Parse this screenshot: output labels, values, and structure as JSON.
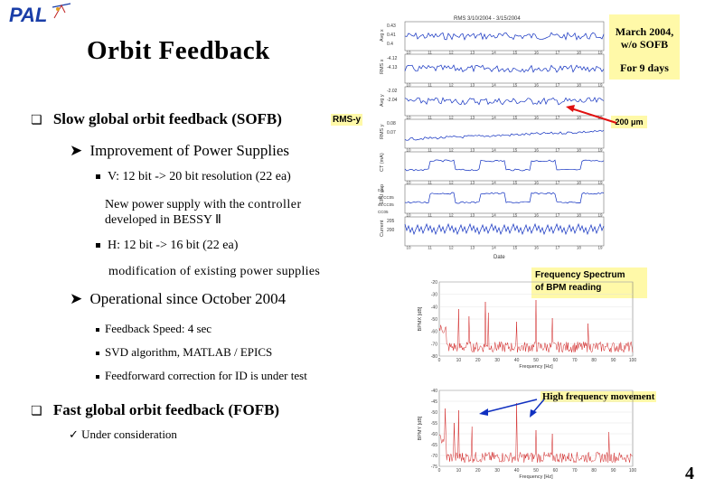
{
  "logo_text": "PAL",
  "title": "Orbit Feedback",
  "sofb": {
    "heading": "Slow global orbit feedback (SOFB)",
    "improvement": "Improvement of Power Supplies",
    "v_item": "V: 12 bit -> 20 bit resolution (22 ea)",
    "v_note_1": "New power supply with the",
    "v_note_controller": "controller",
    "v_note_2": "developed in BESSY Ⅱ",
    "h_item": "H: 12 bit -> 16 bit (22 ea)",
    "h_note": "modification of existing power supplies",
    "operational": "Operational since October 2004",
    "details": [
      "Feedback Speed:  4 sec",
      "SVD algorithm, MATLAB / EPICS",
      "Feedforward correction for ID is under test"
    ]
  },
  "fofb": {
    "heading": "Fast global orbit feedback (FOFB)",
    "note": "Under consideration"
  },
  "callouts": {
    "march": "March 2004, w/o SOFB",
    "days": "For 9 days",
    "rms_label": "RMS-y",
    "um_label": "200 μm",
    "freq_spectrum_1": "Frequency Spectrum",
    "freq_spectrum_2": "of BPM  reading",
    "high_freq": "High frequency movement"
  },
  "rms_chart": {
    "header": "RMS   3/10/2004  -  3/15/2004",
    "xlabel": "Date",
    "x_ticks": [
      "10",
      "11",
      "12",
      "13",
      "14",
      "15",
      "16",
      "17",
      "18",
      "19"
    ],
    "panel_labels": [
      "Avg x",
      "RMS x",
      "Avg y",
      "RMS y",
      "CT (mA)",
      "EPU gap",
      "Current"
    ],
    "panel_ticks": [
      [
        "0.43",
        "0.41",
        "0.4"
      ],
      [
        "-4.12",
        "-4.13"
      ],
      [
        "-2.02",
        "-2.04"
      ],
      [
        "0.08",
        "0.07"
      ],
      [
        "",
        ""
      ],
      [
        "",
        ""
      ],
      [
        "205",
        "200"
      ]
    ],
    "extra_ticks": [
      "0.1",
      "46.CC05",
      "45.CC05",
      "CC05"
    ]
  },
  "spectrum1": {
    "ylabel": "BPMX [dB]",
    "xlabel": "Frequency [Hz]",
    "y_ticks": [
      "-20",
      "-30",
      "-40",
      "-50",
      "-60",
      "-70",
      "-80"
    ],
    "x_ticks": [
      "0",
      "10",
      "20",
      "30",
      "40",
      "50",
      "60",
      "70",
      "80",
      "90",
      "100"
    ]
  },
  "spectrum2": {
    "ylabel": "BPMY [dB]",
    "xlabel": "Frequency [Hz]",
    "y_ticks": [
      "-40",
      "-45",
      "-50",
      "-55",
      "-60",
      "-65",
      "-70",
      "-75"
    ],
    "x_ticks": [
      "0",
      "10",
      "20",
      "30",
      "40",
      "50",
      "60",
      "70",
      "80",
      "90",
      "100"
    ]
  },
  "page_number": "4"
}
